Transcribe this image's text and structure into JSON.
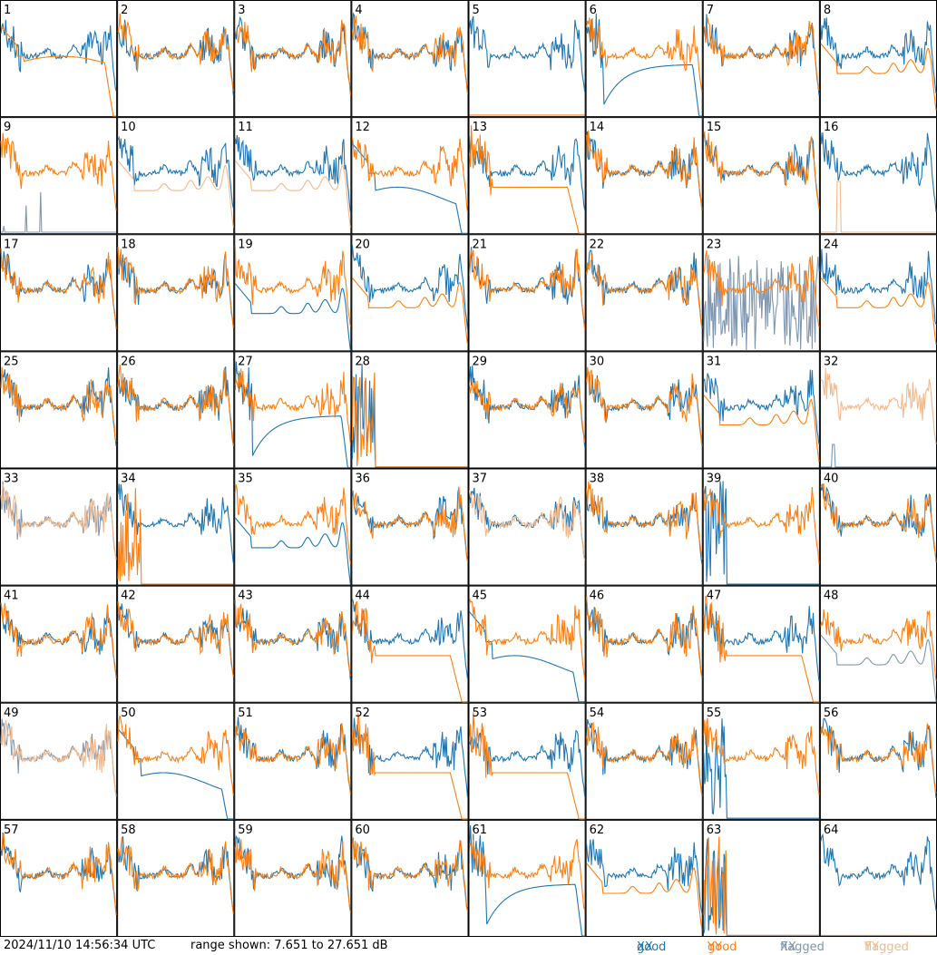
{
  "footer": {
    "timestamp": "2024/11/10 14:56:34 UTC",
    "range_text": "range shown: 7.651 to 27.651 dB"
  },
  "legend": [
    {
      "status": "good",
      "pol": "XX",
      "color": "#1f77b4"
    },
    {
      "status": "good",
      "pol": "YY",
      "color": "#ff7f0e"
    },
    {
      "status": "flagged",
      "pol": "XX",
      "color": "#7f97b1"
    },
    {
      "status": "flagged",
      "pol": "YY",
      "color": "#f5b98a"
    }
  ],
  "chart_data": {
    "type": "line",
    "layout": "8x8 small multiples",
    "y_range_db": [
      7.651,
      27.651
    ],
    "grid": false,
    "legend_placement": "bottom-right",
    "panels": [
      {
        "id": 1,
        "xx": "good",
        "yy": "good",
        "shape": "deg"
      },
      {
        "id": 2,
        "xx": "good",
        "yy": "good",
        "shape": "n"
      },
      {
        "id": 3,
        "xx": "good",
        "yy": "good",
        "shape": "n"
      },
      {
        "id": 4,
        "xx": "good",
        "yy": "good",
        "shape": "n"
      },
      {
        "id": 5,
        "xx": "good",
        "yy": "good",
        "shape": "yyflat"
      },
      {
        "id": 6,
        "xx": "good",
        "yy": "good",
        "shape": "degdeep"
      },
      {
        "id": 7,
        "xx": "good",
        "yy": "good",
        "shape": "n"
      },
      {
        "id": 8,
        "xx": "good",
        "yy": "good",
        "shape": "yylow"
      },
      {
        "id": 9,
        "xx": "flagged",
        "yy": "good",
        "shape": "xxspikes"
      },
      {
        "id": 10,
        "xx": "good",
        "yy": "flagged",
        "shape": "yylow"
      },
      {
        "id": 11,
        "xx": "good",
        "yy": "flagged",
        "shape": "yylow"
      },
      {
        "id": 12,
        "xx": "good",
        "yy": "good",
        "shape": "degxx"
      },
      {
        "id": 13,
        "xx": "good",
        "yy": "good",
        "shape": "degyy"
      },
      {
        "id": 14,
        "xx": "good",
        "yy": "good",
        "shape": "n"
      },
      {
        "id": 15,
        "xx": "good",
        "yy": "good",
        "shape": "n"
      },
      {
        "id": 16,
        "xx": "good",
        "yy": "flagged",
        "shape": "yyspike"
      },
      {
        "id": 17,
        "xx": "good",
        "yy": "good",
        "shape": "n"
      },
      {
        "id": 18,
        "xx": "good",
        "yy": "good",
        "shape": "n"
      },
      {
        "id": 19,
        "xx": "good",
        "yy": "good",
        "shape": "xxlow"
      },
      {
        "id": 20,
        "xx": "good",
        "yy": "good",
        "shape": "yylow"
      },
      {
        "id": 21,
        "xx": "good",
        "yy": "good",
        "shape": "n"
      },
      {
        "id": 22,
        "xx": "good",
        "yy": "good",
        "shape": "n"
      },
      {
        "id": 23,
        "xx": "flagged",
        "yy": "good",
        "shape": "xxnoise"
      },
      {
        "id": 24,
        "xx": "good",
        "yy": "good",
        "shape": "yylow"
      },
      {
        "id": 25,
        "xx": "good",
        "yy": "good",
        "shape": "n"
      },
      {
        "id": 26,
        "xx": "good",
        "yy": "good",
        "shape": "n"
      },
      {
        "id": 27,
        "xx": "good",
        "yy": "good",
        "shape": "degdeep"
      },
      {
        "id": 28,
        "xx": "good",
        "yy": "good",
        "shape": "dead"
      },
      {
        "id": 29,
        "xx": "good",
        "yy": "good",
        "shape": "n"
      },
      {
        "id": 30,
        "xx": "good",
        "yy": "good",
        "shape": "n"
      },
      {
        "id": 31,
        "xx": "good",
        "yy": "good",
        "shape": "yylow"
      },
      {
        "id": 32,
        "xx": "flagged",
        "yy": "flagged",
        "shape": "yyonly"
      },
      {
        "id": 33,
        "xx": "flagged",
        "yy": "flagged",
        "shape": "n"
      },
      {
        "id": 34,
        "xx": "good",
        "yy": "good",
        "shape": "deadyy"
      },
      {
        "id": 35,
        "xx": "good",
        "yy": "good",
        "shape": "xxlow"
      },
      {
        "id": 36,
        "xx": "good",
        "yy": "good",
        "shape": "n"
      },
      {
        "id": 37,
        "xx": "good",
        "yy": "flagged",
        "shape": "n"
      },
      {
        "id": 38,
        "xx": "good",
        "yy": "good",
        "shape": "n"
      },
      {
        "id": 39,
        "xx": "good",
        "yy": "good",
        "shape": "xxdrop"
      },
      {
        "id": 40,
        "xx": "good",
        "yy": "good",
        "shape": "n"
      },
      {
        "id": 41,
        "xx": "good",
        "yy": "good",
        "shape": "n"
      },
      {
        "id": 42,
        "xx": "good",
        "yy": "good",
        "shape": "n"
      },
      {
        "id": 43,
        "xx": "good",
        "yy": "good",
        "shape": "n"
      },
      {
        "id": 44,
        "xx": "good",
        "yy": "good",
        "shape": "degyy"
      },
      {
        "id": 45,
        "xx": "good",
        "yy": "good",
        "shape": "degxx"
      },
      {
        "id": 46,
        "xx": "good",
        "yy": "good",
        "shape": "n"
      },
      {
        "id": 47,
        "xx": "good",
        "yy": "good",
        "shape": "degyy"
      },
      {
        "id": 48,
        "xx": "flagged",
        "yy": "good",
        "shape": "xxlow"
      },
      {
        "id": 49,
        "xx": "flagged",
        "yy": "flagged",
        "shape": "n"
      },
      {
        "id": 50,
        "xx": "good",
        "yy": "good",
        "shape": "degxx"
      },
      {
        "id": 51,
        "xx": "good",
        "yy": "good",
        "shape": "n"
      },
      {
        "id": 52,
        "xx": "good",
        "yy": "good",
        "shape": "degyy"
      },
      {
        "id": 53,
        "xx": "good",
        "yy": "good",
        "shape": "degyy"
      },
      {
        "id": 54,
        "xx": "good",
        "yy": "good",
        "shape": "n"
      },
      {
        "id": 55,
        "xx": "good",
        "yy": "good",
        "shape": "xxdrop"
      },
      {
        "id": 56,
        "xx": "good",
        "yy": "good",
        "shape": "n"
      },
      {
        "id": 57,
        "xx": "good",
        "yy": "good",
        "shape": "n"
      },
      {
        "id": 58,
        "xx": "good",
        "yy": "good",
        "shape": "n"
      },
      {
        "id": 59,
        "xx": "good",
        "yy": "good",
        "shape": "n"
      },
      {
        "id": 60,
        "xx": "good",
        "yy": "good",
        "shape": "n"
      },
      {
        "id": 61,
        "xx": "good",
        "yy": "good",
        "shape": "degdeep"
      },
      {
        "id": 62,
        "xx": "good",
        "yy": "good",
        "shape": "yylow"
      },
      {
        "id": 63,
        "xx": "good",
        "yy": "good",
        "shape": "dead"
      },
      {
        "id": 64,
        "xx": "good",
        "yy": "good",
        "shape": "xxonly"
      }
    ]
  }
}
